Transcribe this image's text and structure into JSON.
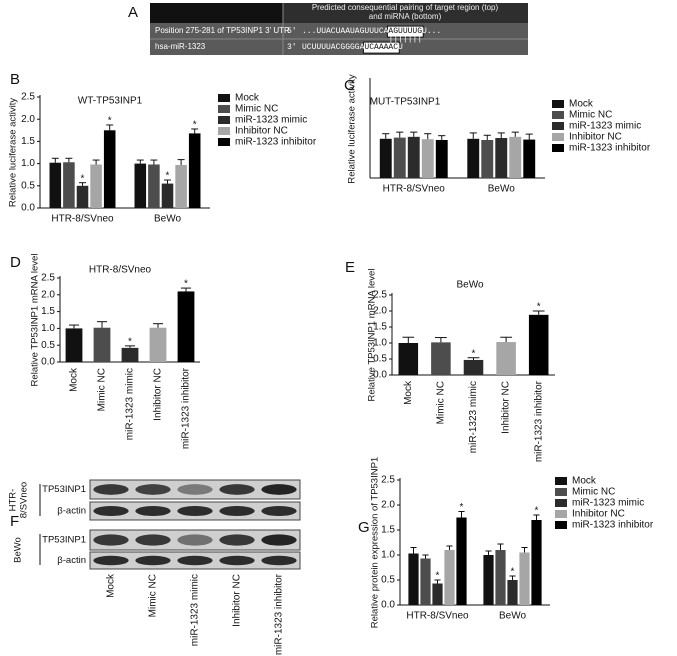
{
  "panel_a": {
    "letter": "A",
    "header": [
      "Predicted consequential pairing of target region (top)",
      "and miRNA (bottom)"
    ],
    "rows": [
      {
        "label": "Position 275-281 of TP53INP1 3' UTR",
        "end": "5'",
        "prefix": "...UUACUAAUAGUUUCA",
        "site": "AGUUUUG",
        "suffix": "U..."
      },
      {
        "label": "hsa-miR-1323",
        "end": "3'",
        "prefix": "UCUUUUACGGGGA",
        "site": "UCAAAAC",
        "suffix": "U"
      }
    ],
    "pairing": "|||||||"
  },
  "chart_data": [
    {
      "type": "bar",
      "letter": "B",
      "title": "WT-TP53INP1",
      "y_label": "Relative luciferase activity",
      "categories": [
        "HTR-8/SVneo",
        "BeWo"
      ],
      "series": [
        {
          "name": "Mock",
          "color": "#111111",
          "values": [
            1.02,
            1.0
          ],
          "errors": [
            0.1,
            0.08
          ]
        },
        {
          "name": "Mimic NC",
          "color": "#4d4d4d",
          "values": [
            1.03,
            0.98
          ],
          "errors": [
            0.09,
            0.1
          ]
        },
        {
          "name": "miR-1323 mimic",
          "color": "#2b2b2b",
          "values": [
            0.5,
            0.55
          ],
          "errors": [
            0.07,
            0.08
          ],
          "annotations": [
            "*",
            "*"
          ]
        },
        {
          "name": "Inhibitor NC",
          "color": "#a6a6a6",
          "values": [
            0.98,
            0.97
          ],
          "errors": [
            0.1,
            0.12
          ]
        },
        {
          "name": "miR-1323 inhibitor",
          "color": "#000000",
          "values": [
            1.75,
            1.68
          ],
          "errors": [
            0.12,
            0.1
          ],
          "annotations": [
            "*",
            "*"
          ]
        }
      ],
      "ylim": [
        0,
        2.5
      ],
      "yticks": [
        {
          "value": 0,
          "label": "0.0"
        },
        0.5,
        {
          "value": 1,
          "label": "1.0"
        },
        1.5,
        {
          "value": 2,
          "label": "2.0"
        },
        2.5
      ]
    },
    {
      "type": "bar",
      "letter": "C",
      "title": "MUT-TP53INP1",
      "y_label": "Relative luciferase activity",
      "categories": [
        "HTR-8/SVneo",
        "BeWo"
      ],
      "series": [
        {
          "name": "Mock",
          "color": "#111111",
          "values": [
            1.0,
            1.0
          ],
          "errors": [
            0.13,
            0.15
          ]
        },
        {
          "name": "Mimic NC",
          "color": "#4d4d4d",
          "values": [
            1.03,
            0.97
          ],
          "errors": [
            0.14,
            0.12
          ]
        },
        {
          "name": "miR-1323 mimic",
          "color": "#2b2b2b",
          "values": [
            1.05,
            1.02
          ],
          "errors": [
            0.12,
            0.13
          ]
        },
        {
          "name": "Inhibitor NC",
          "color": "#a6a6a6",
          "values": [
            0.99,
            1.05
          ],
          "errors": [
            0.14,
            0.12
          ]
        },
        {
          "name": "miR-1323 inhibitor",
          "color": "#000000",
          "values": [
            0.97,
            0.98
          ],
          "errors": [
            0.11,
            0.14
          ]
        }
      ],
      "ylim": [
        0,
        2.5
      ]
    },
    {
      "type": "bar",
      "letter": "D",
      "title": "HTR-8/SVneo",
      "y_label": "Relative TP53INP1 mRNA level",
      "categories": [
        "Mock",
        "Mimic NC",
        "miR-1323 mimic",
        "Inhibitor NC",
        "miR-1323 inhibitor"
      ],
      "values": [
        1.0,
        1.02,
        0.42,
        1.02,
        2.1
      ],
      "errors": [
        0.1,
        0.18,
        0.06,
        0.12,
        0.1
      ],
      "colors": [
        "#111111",
        "#4d4d4d",
        "#2b2b2b",
        "#a6a6a6",
        "#000000"
      ],
      "annotations": [
        null,
        null,
        "*",
        null,
        "*"
      ],
      "ylim": [
        0,
        2.5
      ],
      "yticks": [
        {
          "value": 0,
          "label": "0.0"
        },
        0.5,
        {
          "value": 1,
          "label": "1.0"
        },
        1.5,
        {
          "value": 2,
          "label": "2.0"
        },
        2.5
      ]
    },
    {
      "type": "bar",
      "letter": "E",
      "title": "BeWo",
      "y_label": "Relative TP53INP1 mRNA level",
      "categories": [
        "Mock",
        "Mimic NC",
        "miR-1323 mimic",
        "Inhibitor NC",
        "miR-1323 inhibitor"
      ],
      "values": [
        1.0,
        1.02,
        0.47,
        1.03,
        1.88
      ],
      "errors": [
        0.18,
        0.15,
        0.07,
        0.15,
        0.12
      ],
      "colors": [
        "#111111",
        "#4d4d4d",
        "#2b2b2b",
        "#a6a6a6",
        "#000000"
      ],
      "annotations": [
        null,
        null,
        "*",
        null,
        "*"
      ],
      "ylim": [
        0,
        2.5
      ],
      "yticks": [
        {
          "value": 0,
          "label": "0.0"
        },
        0.5,
        {
          "value": 1,
          "label": "1.0"
        },
        1.5,
        {
          "value": 2,
          "label": "2.0"
        },
        2.5
      ]
    },
    {
      "type": "bar",
      "letter": "G",
      "y_label": "Relative protein expression of TP53INP1",
      "categories": [
        "HTR-8/SVneo",
        "BeWo"
      ],
      "series": [
        {
          "name": "Mock",
          "color": "#111111",
          "values": [
            1.03,
            1.0
          ],
          "errors": [
            0.12,
            0.08
          ]
        },
        {
          "name": "Mimic NC",
          "color": "#4d4d4d",
          "values": [
            0.93,
            1.1
          ],
          "errors": [
            0.07,
            0.12
          ]
        },
        {
          "name": "miR-1323 mimic",
          "color": "#2b2b2b",
          "values": [
            0.43,
            0.5
          ],
          "errors": [
            0.07,
            0.08
          ],
          "annotations": [
            "*",
            "*"
          ]
        },
        {
          "name": "Inhibitor NC",
          "color": "#a6a6a6",
          "values": [
            1.1,
            1.05
          ],
          "errors": [
            0.08,
            0.1
          ]
        },
        {
          "name": "miR-1323 inhibitor",
          "color": "#000000",
          "values": [
            1.75,
            1.7
          ],
          "errors": [
            0.12,
            0.1
          ],
          "annotations": [
            "*",
            "*"
          ]
        }
      ],
      "ylim": [
        0,
        2.5
      ],
      "yticks": [
        {
          "value": 0,
          "label": "0.0"
        },
        0.5,
        {
          "value": 1,
          "label": "1.0"
        },
        1.5,
        {
          "value": 2,
          "label": "2.0"
        },
        2.5
      ]
    }
  ],
  "panel_f": {
    "letter": "F",
    "groups": [
      {
        "label": [
          "HTR-",
          "8/SVneo"
        ],
        "rows": [
          "TP53INP1",
          "β-actin"
        ]
      },
      {
        "label": [
          "BeWo"
        ],
        "rows": [
          "TP53INP1",
          "β-actin"
        ]
      }
    ],
    "lanes": [
      "Mock",
      "Mimic NC",
      "miR-1323 mimic",
      "Inhibitor NC",
      "miR-1323 inhibitor"
    ]
  }
}
